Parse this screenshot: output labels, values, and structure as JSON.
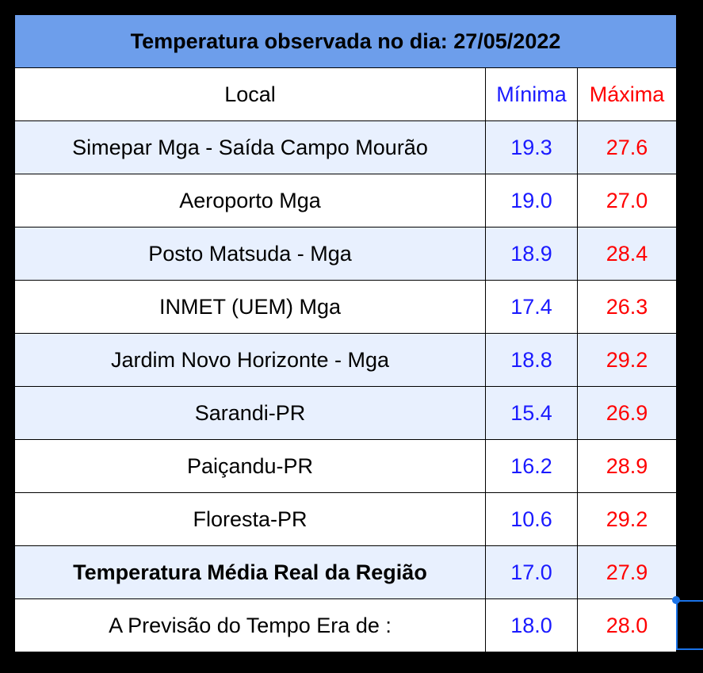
{
  "title": "Temperatura observada no dia: 27/05/2022",
  "table": {
    "header": [
      "Local",
      "Mínima",
      "Máxima"
    ],
    "rows": [
      [
        "Simepar Mga - Saída Campo Mourão",
        "19.3",
        "27.6"
      ],
      [
        "Aeroporto Mga",
        "19.0",
        "27.0"
      ],
      [
        "Posto Matsuda - Mga",
        "18.9",
        "28.4"
      ],
      [
        "INMET (UEM) Mga",
        "17.4",
        "26.3"
      ],
      [
        "Jardim Novo Horizonte - Mga",
        "18.8",
        "29.2"
      ],
      [
        "Sarandi-PR",
        "15.4",
        "26.9"
      ],
      [
        "Paiçandu-PR",
        "16.2",
        "28.9"
      ],
      [
        "Floresta-PR",
        "10.6",
        "29.2"
      ],
      [
        "Temperatura Média Real da Região",
        "17.0",
        "27.9"
      ],
      [
        "A Previsão do Tempo Era de :",
        "18.0",
        "28.0"
      ]
    ]
  }
}
